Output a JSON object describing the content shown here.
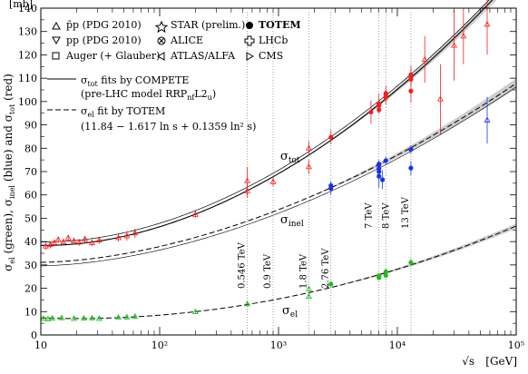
{
  "chart_data": {
    "type": "scatter",
    "x_scale": "log",
    "xlim": [
      10,
      100000
    ],
    "ylim": [
      0,
      140
    ],
    "xticks": [
      10,
      100,
      1000,
      10000,
      100000
    ],
    "xtick_labels": [
      "10",
      "10²",
      "10³",
      "10⁴",
      "10⁵"
    ],
    "yticks": [
      0,
      10,
      20,
      30,
      40,
      50,
      60,
      70,
      80,
      90,
      100,
      110,
      120,
      130,
      140
    ],
    "ylabel_unit": "[mb]",
    "xlabel": "√s",
    "xlabel_unit": "[GeV]",
    "ylabel_parts": {
      "a": "σ",
      "a_sub": "el",
      "b": " (green), σ",
      "b_sub": "inel",
      "c": " (blue) and σ",
      "c_sub": "tot",
      "d": " (red)"
    },
    "colors": {
      "tot": "#ee2222",
      "inel": "#1a33e6",
      "el": "#22bb22",
      "band": "#c8c8c8",
      "axis": "#000000",
      "grid": "#666666"
    },
    "legend": {
      "markers": [
        {
          "symbol": "triangle-up",
          "label": "p̄p (PDG 2010)"
        },
        {
          "symbol": "star",
          "label": "STAR (prelim.)"
        },
        {
          "symbol": "filled-circle",
          "label": "TOTEM"
        },
        {
          "symbol": "triangle-down",
          "label": "pp (PDG 2010)"
        },
        {
          "symbol": "cross-circle",
          "label": "ALICE"
        },
        {
          "symbol": "open-cross",
          "label": "LHCb"
        },
        {
          "symbol": "square",
          "label": "Auger (+ Glauber)"
        },
        {
          "symbol": "triangle-left",
          "label": "ATLAS/ALFA"
        },
        {
          "symbol": "triangle-right",
          "label": "CMS"
        }
      ],
      "fit_solid": {
        "pre": "σ",
        "sub": "tot",
        "post": " fits by COMPETE"
      },
      "fit_solid_note": {
        "pre": "(pre-LHC model RRP",
        "sub": "nf",
        "post": "L2",
        "sub2": "u",
        "end": ")"
      },
      "fit_dashed": {
        "pre": "σ",
        "sub": "el",
        "post": " fit by TOTEM"
      },
      "fit_dashed_formula": "(11.84 − 1.617 ln s + 0.1359 ln² s)"
    },
    "curve_labels": {
      "tot": {
        "text": "σ",
        "sub": "tot"
      },
      "inel": {
        "text": "σ",
        "sub": "inel"
      },
      "el": {
        "text": "σ",
        "sub": "el"
      }
    },
    "energy_markers": [
      {
        "x": 546,
        "label": "0.546 TeV"
      },
      {
        "x": 900,
        "label": "0.9 TeV"
      },
      {
        "x": 1800,
        "label": "1.8 TeV"
      },
      {
        "x": 2760,
        "label": "2.76 TeV"
      },
      {
        "x": 7000,
        "label": "7 TeV"
      },
      {
        "x": 8000,
        "label": "8 TeV"
      },
      {
        "x": 13000,
        "label": "13 TeV"
      }
    ],
    "curves": {
      "tot_compete": {
        "formula": "Z + B*ln^2(s/s0) + Y1*(s1/s)^eta1 - Y2*(s1/s)^eta2",
        "Z": 35.45,
        "B": 0.308,
        "s0": 29.1,
        "Y1": 42.53,
        "Y2": 33.34,
        "eta1": 0.458,
        "eta2": 0.545
      },
      "el_totem": {
        "a": 11.84,
        "b": -1.617,
        "c": 0.1359
      }
    },
    "series": [
      {
        "name": "tot",
        "points": [
          {
            "x": 11,
            "y": 38,
            "err": 1.5
          },
          {
            "x": 12,
            "y": 38.6,
            "err": 1.5
          },
          {
            "x": 13,
            "y": 39.5,
            "err": 1.5
          },
          {
            "x": 14,
            "y": 40.8,
            "err": 1.5
          },
          {
            "x": 15.5,
            "y": 39.8,
            "err": 1.5
          },
          {
            "x": 17,
            "y": 41.5,
            "err": 1.5
          },
          {
            "x": 19,
            "y": 40.2,
            "err": 1.5
          },
          {
            "x": 21,
            "y": 39.7,
            "err": 1.5
          },
          {
            "x": 23.5,
            "y": 41,
            "err": 1.5
          },
          {
            "x": 27,
            "y": 39.5,
            "err": 1.5
          },
          {
            "x": 31,
            "y": 40.6,
            "err": 1.5
          },
          {
            "x": 45,
            "y": 41.6,
            "err": 1.5
          },
          {
            "x": 53,
            "y": 42.4,
            "err": 2
          },
          {
            "x": 62,
            "y": 43.6,
            "err": 2
          },
          {
            "x": 200,
            "y": 51.6,
            "err": 1.5
          },
          {
            "x": 546,
            "y": 61.7,
            "err": 3
          },
          {
            "x": 546,
            "y": 66,
            "err": 6
          },
          {
            "x": 900,
            "y": 65.6,
            "err": 2
          },
          {
            "x": 1800,
            "y": 72,
            "err": 3
          },
          {
            "x": 1800,
            "y": 80,
            "err": 3
          },
          {
            "x": 2760,
            "y": 84.7,
            "err": 3
          },
          {
            "x": 6000,
            "y": 95.5,
            "err": 5
          },
          {
            "x": 7000,
            "y": 98.3,
            "err": 2.8
          },
          {
            "x": 7000,
            "y": 98.6,
            "err": 2.2
          },
          {
            "x": 7000,
            "y": 99.1,
            "err": 4.3
          },
          {
            "x": 7000,
            "y": 96.5,
            "err": 1.5
          },
          {
            "x": 8000,
            "y": 101.7,
            "err": 2.9
          },
          {
            "x": 8000,
            "y": 102.9,
            "err": 2.3
          },
          {
            "x": 8000,
            "y": 103.5,
            "err": 3.5
          },
          {
            "x": 13000,
            "y": 110.6,
            "err": 3.4
          },
          {
            "x": 13000,
            "y": 111.5,
            "err": 4
          },
          {
            "x": 13000,
            "y": 104.5,
            "err": 5
          },
          {
            "x": 13000,
            "y": 109.5,
            "err": 2.5
          },
          {
            "x": 17000,
            "y": 118,
            "err": 10
          },
          {
            "x": 23000,
            "y": 101,
            "err": 15
          },
          {
            "x": 30000,
            "y": 124,
            "err": 15
          },
          {
            "x": 36000,
            "y": 128,
            "err": 12
          },
          {
            "x": 57000,
            "y": 133,
            "err": 13
          }
        ]
      },
      {
        "name": "inel",
        "points": [
          {
            "x": 2760,
            "y": 62.8,
            "err": 2.9
          },
          {
            "x": 2760,
            "y": 64,
            "err": 1.5
          },
          {
            "x": 7000,
            "y": 72.9,
            "err": 1.5
          },
          {
            "x": 7000,
            "y": 73.2,
            "err": 1.3
          },
          {
            "x": 7000,
            "y": 71.3,
            "err": 3.6
          },
          {
            "x": 7000,
            "y": 68,
            "err": 5
          },
          {
            "x": 7000,
            "y": 70,
            "err": 3
          },
          {
            "x": 7500,
            "y": 66.5,
            "err": 4
          },
          {
            "x": 8000,
            "y": 74.7,
            "err": 1.7
          },
          {
            "x": 13000,
            "y": 79.5,
            "err": 1.8
          },
          {
            "x": 13000,
            "y": 71.5,
            "err": 3
          },
          {
            "x": 57000,
            "y": 92,
            "err": 10
          }
        ]
      },
      {
        "name": "el",
        "points": [
          {
            "x": 10.5,
            "y": 7,
            "err": 0.8
          },
          {
            "x": 11.5,
            "y": 6.8,
            "err": 0.8
          },
          {
            "x": 12.5,
            "y": 7.1,
            "err": 0.8
          },
          {
            "x": 15,
            "y": 7.3,
            "err": 0.8
          },
          {
            "x": 19,
            "y": 7,
            "err": 0.8
          },
          {
            "x": 23,
            "y": 7.1,
            "err": 0.8
          },
          {
            "x": 27,
            "y": 7.2,
            "err": 0.8
          },
          {
            "x": 31,
            "y": 7,
            "err": 0.8
          },
          {
            "x": 45,
            "y": 7.5,
            "err": 0.8
          },
          {
            "x": 53,
            "y": 7.6,
            "err": 0.8
          },
          {
            "x": 62,
            "y": 7.9,
            "err": 0.8
          },
          {
            "x": 200,
            "y": 9.9,
            "err": 0.8
          },
          {
            "x": 546,
            "y": 13.3,
            "err": 0.8
          },
          {
            "x": 1800,
            "y": 16.5,
            "err": 1
          },
          {
            "x": 1800,
            "y": 19.7,
            "err": 0.9
          },
          {
            "x": 2760,
            "y": 21.8,
            "err": 1.4
          },
          {
            "x": 7000,
            "y": 24.8,
            "err": 1.2
          },
          {
            "x": 7000,
            "y": 25.4,
            "err": 1
          },
          {
            "x": 7000,
            "y": 24.5,
            "err": 0.8
          },
          {
            "x": 8000,
            "y": 27.1,
            "err": 1.4
          },
          {
            "x": 8000,
            "y": 25.5,
            "err": 1
          },
          {
            "x": 13000,
            "y": 31,
            "err": 1.7
          }
        ]
      }
    ]
  }
}
